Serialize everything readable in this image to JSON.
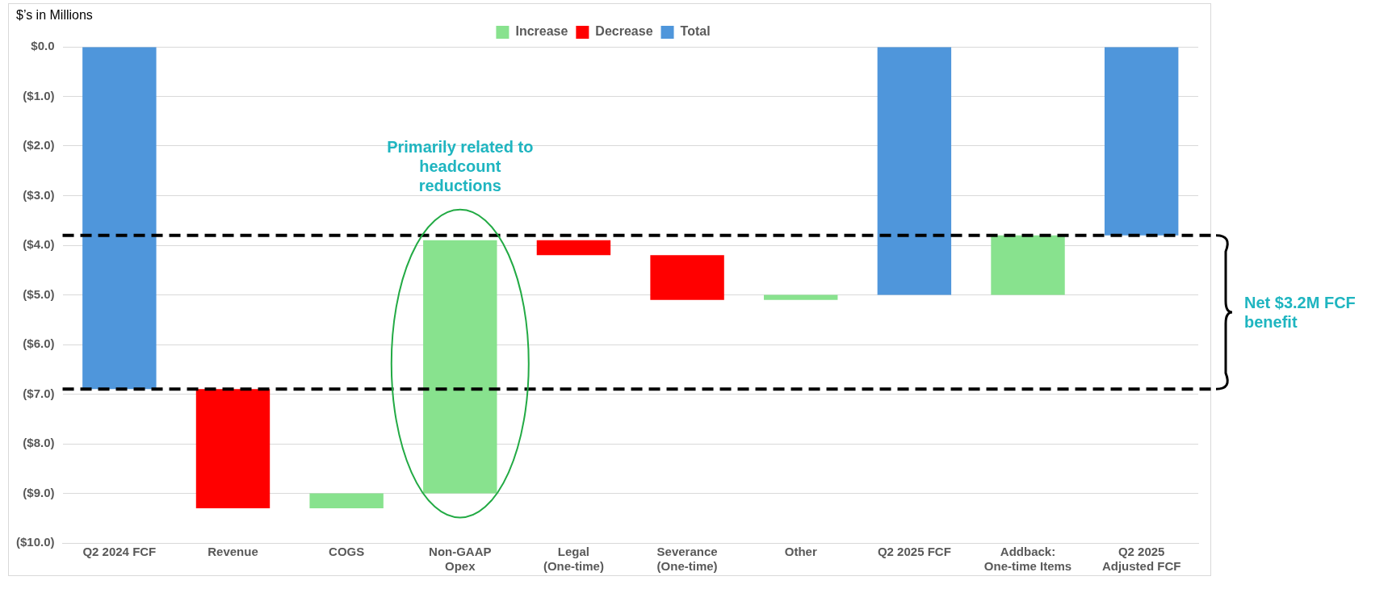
{
  "chart_data": {
    "type": "bar",
    "ylabel": "$’s in Millions",
    "categories": [
      "Q2 2024 FCF",
      "Revenue",
      "COGS",
      "Non-GAAP Opex",
      "Legal (One-time)",
      "Severance (One-time)",
      "Other",
      "Q2 2025 FCF",
      "Addback: One-time Items",
      "Q2 2025 Adjusted FCF"
    ],
    "series": [
      {
        "name": "Increase",
        "color": "#88e28e",
        "values": [
          null,
          null,
          0.3,
          5.1,
          null,
          null,
          0.1,
          null,
          1.2,
          null
        ],
        "base": [
          null,
          null,
          -9.3,
          -9.0,
          null,
          null,
          -5.1,
          null,
          -5.0,
          null
        ]
      },
      {
        "name": "Decrease",
        "color": "#ff0000",
        "values": [
          null,
          -2.4,
          null,
          null,
          -0.3,
          -0.9,
          null,
          null,
          null,
          null
        ],
        "base": [
          null,
          -6.9,
          null,
          null,
          -3.9,
          -4.2,
          null,
          null,
          null,
          null
        ]
      },
      {
        "name": "Total",
        "color": "#4f96db",
        "values": [
          -6.9,
          null,
          null,
          null,
          null,
          null,
          null,
          -5.0,
          null,
          -3.8
        ],
        "base": [
          0,
          null,
          null,
          null,
          null,
          null,
          null,
          0,
          null,
          0
        ]
      }
    ],
    "ylim": [
      -10,
      0
    ],
    "yticks": [
      {
        "value": -10,
        "label": "($10.0)"
      },
      {
        "value": -9,
        "label": "($9.0)"
      },
      {
        "value": -8,
        "label": "($8.0)"
      },
      {
        "value": -7,
        "label": "($7.0)"
      },
      {
        "value": -6,
        "label": "($6.0)"
      },
      {
        "value": -5,
        "label": "($5.0)"
      },
      {
        "value": -4,
        "label": "($4.0)"
      },
      {
        "value": -3,
        "label": "($3.0)"
      },
      {
        "value": -2,
        "label": "($2.0)"
      },
      {
        "value": -1,
        "label": "($1.0)"
      },
      {
        "value": 0,
        "label": "$0.0"
      }
    ],
    "ref_lines": [
      {
        "axis": "y",
        "value": -3.8,
        "color": "#000000",
        "line_style": "dashed"
      },
      {
        "axis": "y",
        "value": -6.9,
        "color": "#000000",
        "line_style": "dashed"
      }
    ],
    "annotations": [
      "Primarily related to headcount reductions",
      "Net $3.2M FCF benefit"
    ],
    "grid": "y",
    "legend": "top"
  }
}
